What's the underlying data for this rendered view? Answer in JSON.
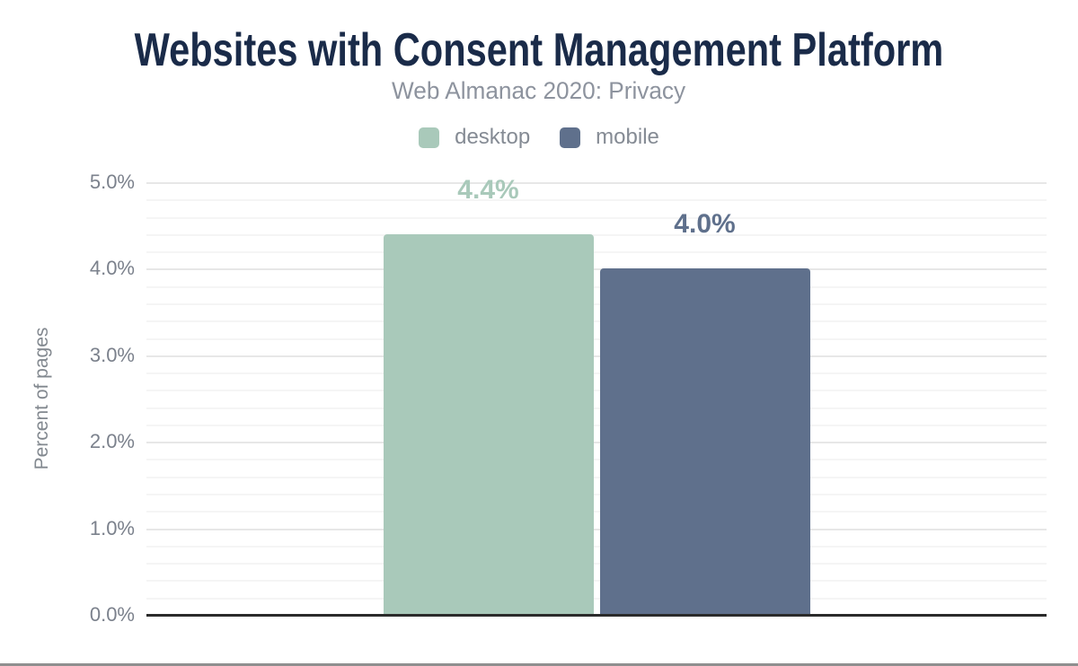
{
  "page": {
    "title": "Websites with Consent Management Platform",
    "subtitle": "Web Almanac 2020: Privacy"
  },
  "colors": {
    "title": "#1a2b49",
    "subtitle": "#8d939e",
    "tick_text": "#7b818c",
    "axis_title_text": "#82888f",
    "legend_text": "#858b94",
    "desktop": "#a9c9ba",
    "mobile": "#5f708c",
    "grid_major": "#e7e7e7",
    "grid_minor": "#f5f5f5",
    "zero_axis": "#2b2b2b",
    "bottom_border": "#8f8f8f",
    "background": "#ffffff"
  },
  "legend": {
    "items": [
      {
        "label": "desktop",
        "color": "#a9c9ba"
      },
      {
        "label": "mobile",
        "color": "#5f708c"
      }
    ]
  },
  "chart_data": {
    "type": "bar",
    "title": "Websites with Consent Management Platform",
    "subtitle": "Web Almanac 2020: Privacy",
    "categories": [
      ""
    ],
    "series": [
      {
        "name": "desktop",
        "value": 4.4,
        "data_label": "4.4%",
        "color": "#a9c9ba"
      },
      {
        "name": "mobile",
        "value": 4.0,
        "data_label": "4.0%",
        "color": "#5f708c"
      }
    ],
    "xlabel": "",
    "ylabel": "Percent of pages",
    "ylim": [
      0,
      5
    ],
    "ytick_step": 1.0,
    "minor_tick_step": 0.2,
    "ytick_labels": [
      "0.0%",
      "1.0%",
      "2.0%",
      "3.0%",
      "4.0%",
      "5.0%"
    ],
    "grid": true,
    "legend_position": "top",
    "value_labels_shown": true
  }
}
